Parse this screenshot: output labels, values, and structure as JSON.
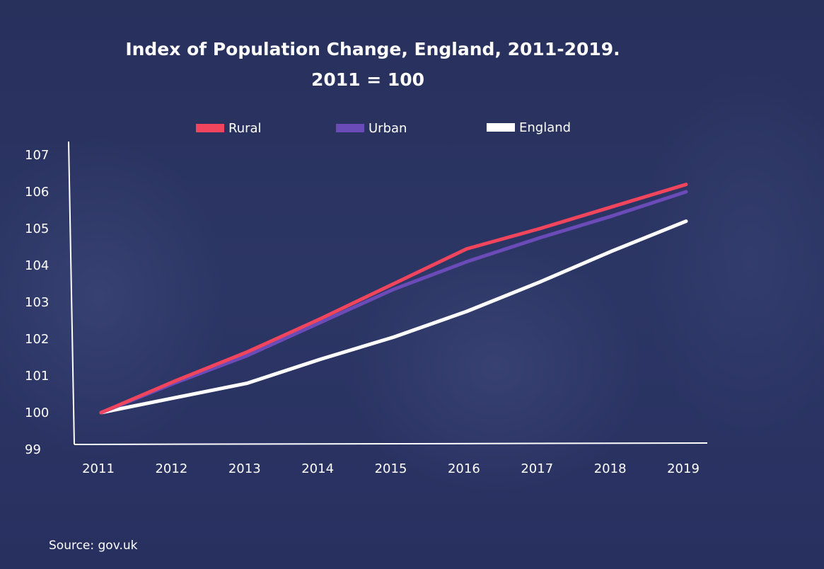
{
  "chart_data": {
    "type": "line",
    "title": "Index of Population Change, England, 2011-2019.",
    "subtitle": "2011 = 100",
    "xlabel": "",
    "ylabel": "",
    "x": [
      "2011",
      "2012",
      "2013",
      "2014",
      "2015",
      "2016",
      "2017",
      "2018",
      "2019"
    ],
    "ylim": [
      99,
      107
    ],
    "yticks": [
      "99",
      "100",
      "101",
      "102",
      "103",
      "104",
      "105",
      "106",
      "107"
    ],
    "legend_position": "top",
    "grid": false,
    "series": [
      {
        "name": "Rural",
        "color": "#f0455c",
        "values": [
          100,
          100.85,
          101.65,
          102.55,
          103.5,
          104.45,
          105.0,
          105.6,
          106.2
        ]
      },
      {
        "name": "Urban",
        "color": "#6a4bb8",
        "values": [
          100,
          100.8,
          101.55,
          102.45,
          103.35,
          104.1,
          104.75,
          105.35,
          106.0
        ]
      },
      {
        "name": "England",
        "color": "#ffffff",
        "values": [
          100,
          100.4,
          100.8,
          101.45,
          102.05,
          102.75,
          103.55,
          104.4,
          105.2
        ]
      }
    ],
    "source": "Source: gov.uk"
  }
}
